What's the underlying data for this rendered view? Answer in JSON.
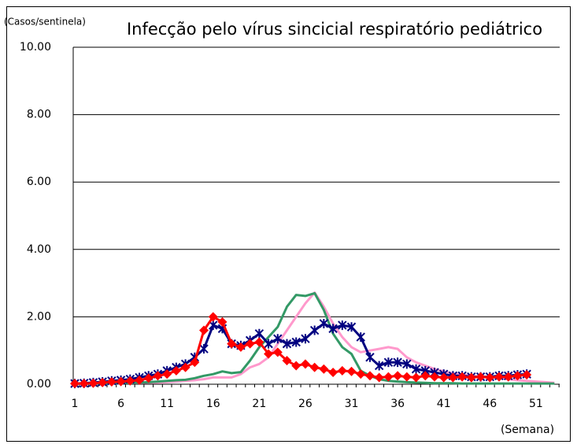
{
  "chart_data": {
    "type": "line",
    "title": "Infecção pelo vírus sincicial respiratório pediátrico",
    "y_label": "(Casos/sentinela)",
    "x_label": "(Semana)",
    "categories": [
      1,
      null,
      null,
      null,
      null,
      6,
      null,
      null,
      null,
      null,
      11,
      null,
      null,
      null,
      null,
      16,
      null,
      null,
      null,
      null,
      21,
      null,
      null,
      null,
      null,
      26,
      null,
      null,
      null,
      null,
      31,
      null,
      null,
      null,
      null,
      36,
      null,
      null,
      null,
      null,
      41,
      null,
      null,
      null,
      null,
      46,
      null,
      null,
      null,
      null,
      51,
      null,
      null
    ],
    "ylim": [
      0,
      10
    ],
    "yticks": [
      {
        "value": 0,
        "label": "0.00"
      },
      {
        "value": 2,
        "label": "2.00"
      },
      {
        "value": 4,
        "label": "4.00"
      },
      {
        "value": 6,
        "label": "6.00"
      },
      {
        "value": 8,
        "label": "8.00"
      },
      {
        "value": 10,
        "label": "10.00"
      }
    ],
    "grid": true,
    "series": [
      {
        "color": "#ff99cc",
        "marker": "none",
        "values": [
          0.02,
          0.02,
          0.02,
          0.02,
          0.03,
          0.03,
          0.04,
          0.04,
          0.05,
          0.05,
          0.06,
          0.08,
          0.1,
          0.12,
          0.15,
          0.2,
          0.2,
          0.2,
          0.3,
          0.5,
          0.6,
          0.8,
          1.2,
          1.6,
          2.0,
          2.4,
          2.72,
          2.3,
          1.8,
          1.4,
          1.1,
          0.95,
          1.0,
          1.05,
          1.1,
          1.05,
          0.8,
          0.65,
          0.55,
          0.45,
          0.38,
          0.32,
          0.28,
          0.25,
          0.22,
          0.2,
          0.18,
          0.15,
          0.12,
          0.1,
          0.08,
          0.06,
          0.04
        ]
      },
      {
        "color": "#339966",
        "marker": "none",
        "values": [
          0.02,
          0.02,
          0.02,
          0.03,
          0.03,
          0.03,
          0.04,
          0.05,
          0.06,
          0.08,
          0.1,
          0.12,
          0.13,
          0.18,
          0.25,
          0.3,
          0.38,
          0.33,
          0.36,
          0.7,
          1.1,
          1.4,
          1.7,
          2.3,
          2.65,
          2.62,
          2.7,
          2.2,
          1.5,
          1.1,
          0.9,
          0.4,
          0.25,
          0.15,
          0.1,
          0.08,
          0.06,
          0.05,
          0.04,
          0.03,
          0.03,
          0.03,
          0.02,
          0.02,
          0.02,
          0.02,
          0.02,
          0.02,
          0.02,
          0.02,
          0.02,
          0.02,
          0.02
        ]
      },
      {
        "color": "#000080",
        "marker": "x",
        "values": [
          0.02,
          0.03,
          0.05,
          0.07,
          0.1,
          0.12,
          0.15,
          0.2,
          0.25,
          0.3,
          0.4,
          0.5,
          0.6,
          0.8,
          1.05,
          1.75,
          1.65,
          1.2,
          1.15,
          1.3,
          1.5,
          1.2,
          1.35,
          1.2,
          1.25,
          1.35,
          1.6,
          1.8,
          1.65,
          1.75,
          1.7,
          1.4,
          0.8,
          0.55,
          0.65,
          0.65,
          0.6,
          0.45,
          0.4,
          0.35,
          0.3,
          0.25,
          0.25,
          0.22,
          0.22,
          0.22,
          0.25,
          0.25,
          0.28,
          0.3,
          null,
          null,
          null
        ]
      },
      {
        "color": "#ff0000",
        "marker": "diamond",
        "values": [
          0.02,
          0.02,
          0.03,
          0.05,
          0.07,
          0.08,
          0.1,
          0.12,
          0.18,
          0.25,
          0.3,
          0.4,
          0.5,
          0.65,
          1.6,
          2.0,
          1.85,
          1.2,
          1.1,
          1.2,
          1.25,
          0.9,
          0.95,
          0.7,
          0.55,
          0.6,
          0.5,
          0.45,
          0.35,
          0.4,
          0.38,
          0.3,
          0.25,
          0.2,
          0.22,
          0.25,
          0.22,
          0.2,
          0.25,
          0.22,
          0.2,
          0.2,
          0.22,
          0.2,
          0.22,
          0.2,
          0.22,
          0.22,
          0.25,
          0.28,
          null,
          null,
          null
        ]
      }
    ]
  }
}
